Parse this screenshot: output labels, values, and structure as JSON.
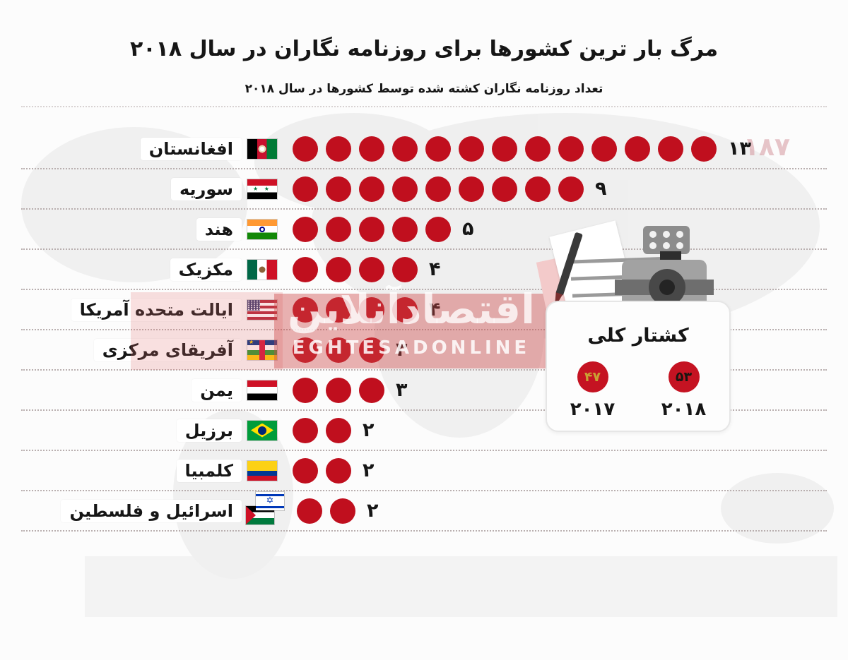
{
  "header": {
    "title": "مرگ بار ترین کشورها برای روزنامه نگاران در سال ۲۰۱۸",
    "subtitle": "تعداد روزنامه نگاران کشته شده توسط کشورها در سال ۲۰۱۸"
  },
  "chart_data": {
    "type": "bar",
    "variant": "pictogram-dot-chart",
    "title": "مرگ بار ترین کشورها برای روزنامه نگاران در سال ۲۰۱۸",
    "subtitle": "تعداد روزنامه نگاران کشته شده توسط کشورها در سال ۲۰۱۸",
    "unit": "journalists killed",
    "dot_color": "#c00f1e",
    "categories": [
      "افغانستان",
      "سوریه",
      "هند",
      "مکزیک",
      "ایالت متحده آمریکا",
      "آفریقای مرکزی",
      "یمن",
      "برزیل",
      "کلمبیا",
      "اسرائیل و فلسطین"
    ],
    "values": [
      13,
      9,
      5,
      4,
      4,
      3,
      3,
      2,
      2,
      2
    ],
    "value_labels": [
      "۱۳",
      "۹",
      "۵",
      "۴",
      "۴",
      "۳",
      "۳",
      "۲",
      "۲",
      "۲"
    ],
    "rows": [
      {
        "label": "افغانستان",
        "flag": "af",
        "flag_name": "afghanistan-flag",
        "value": 13,
        "value_label": "۱۳"
      },
      {
        "label": "سوریه",
        "flag": "sy",
        "flag_name": "syria-flag",
        "value": 9,
        "value_label": "۹"
      },
      {
        "label": "هند",
        "flag": "in",
        "flag_name": "india-flag",
        "value": 5,
        "value_label": "۵"
      },
      {
        "label": "مکزیک",
        "flag": "mx",
        "flag_name": "mexico-flag",
        "value": 4,
        "value_label": "۴"
      },
      {
        "label": "ایالت متحده آمریکا",
        "flag": "us",
        "flag_name": "usa-flag",
        "value": 4,
        "value_label": "۴"
      },
      {
        "label": "آفریقای مرکزی",
        "flag": "cf",
        "flag_name": "central-african-republic-flag",
        "value": 3,
        "value_label": "۳"
      },
      {
        "label": "یمن",
        "flag": "ye",
        "flag_name": "yemen-flag",
        "value": 3,
        "value_label": "۳"
      },
      {
        "label": "برزیل",
        "flag": "br",
        "flag_name": "brazil-flag",
        "value": 2,
        "value_label": "۲"
      },
      {
        "label": "کلمبیا",
        "flag": "co",
        "flag_name": "colombia-flag",
        "value": 2,
        "value_label": "۲"
      },
      {
        "label": "اسرائیل و فلسطین",
        "flag": "il-ps",
        "flag_name": "israel-palestine-flags",
        "value": 2,
        "value_label": "۲"
      }
    ]
  },
  "summary_box": {
    "title": "کشتار کلی",
    "items": [
      {
        "year": 2018,
        "year_label": "۲۰۱۸",
        "value": 53,
        "value_label": "۵۳",
        "value_color": "#1c1510"
      },
      {
        "year": 2017,
        "year_label": "۲۰۱۷",
        "value": 47,
        "value_label": "۴۷",
        "value_color": "#c9a033"
      }
    ]
  },
  "watermark": {
    "persian": "اقتصادآنلاین",
    "latin": "EGHTESADONLINE"
  },
  "background": {
    "artifact_number": "۱۸۷"
  },
  "colors": {
    "dot_red": "#c00f1e",
    "stat_circle_red": "#c51322",
    "watermark_band": "rgba(206,72,72,0.42)",
    "dotted_line": "#b9afaf",
    "text": "#161616"
  }
}
